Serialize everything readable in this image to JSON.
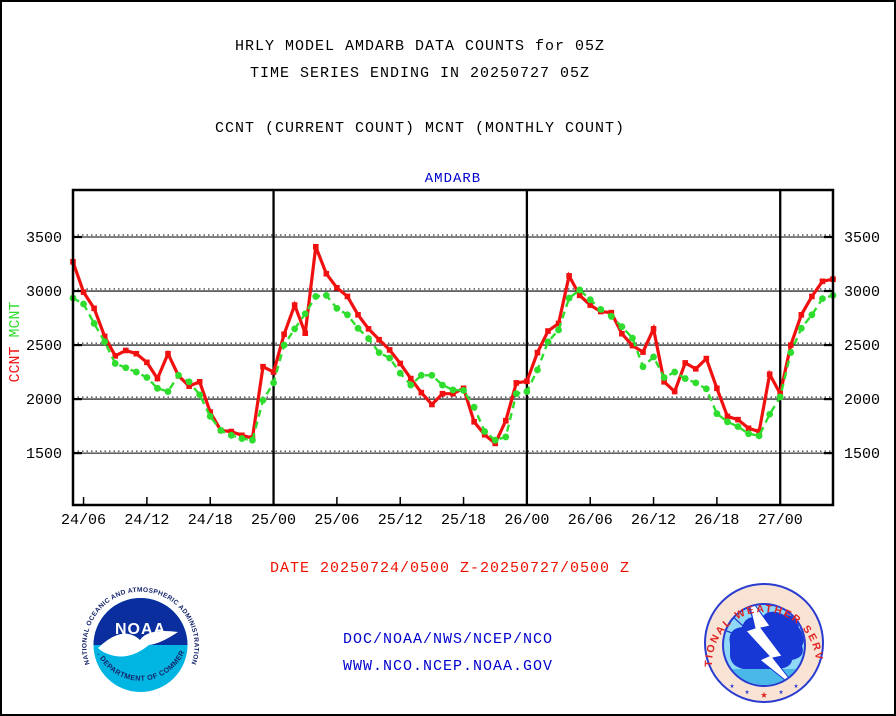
{
  "page": {
    "title_line1": "HRLY MODEL AMDARB DATA COUNTS for 05Z",
    "title_line2": "TIME SERIES ENDING IN 20250727 05Z",
    "subtitle": "CCNT (CURRENT COUNT) MCNT (MONTHLY COUNT)",
    "date_range": "DATE 20250724/0500 Z-20250727/0500 Z",
    "org_line": "DOC/NOAA/NWS/NCEP/NCO",
    "url_line": "WWW.NCO.NCEP.NOAA.GOV"
  },
  "axis_label": {
    "ccnt": "CCNT",
    "mcnt": "MCNT"
  },
  "colors": {
    "ccnt": "#f01010",
    "mcnt": "#2fdd2f",
    "chart_title": "#0000cc",
    "links": "#0000cc",
    "date": "#ee1100"
  },
  "logos": {
    "noaa": {
      "name": "NOAA",
      "top_text": "NATIONAL OCEANIC AND ATMOSPHERIC ADMINISTRATION",
      "bottom_text": "U.S. DEPARTMENT OF COMMERCE"
    },
    "nws": {
      "ring_text": "NATIONAL WEATHER SERVICE"
    }
  },
  "chart_data": {
    "type": "line",
    "title": "AMDARB",
    "xlabel": "",
    "ylabel": "CCNT MCNT",
    "grid": "horizontal-dotted",
    "legend_position": "none",
    "ylim": [
      1020,
      3935
    ],
    "yticks": [
      3500,
      3000,
      2500,
      2000,
      1500
    ],
    "xtick_labels": [
      "24/06",
      "24/12",
      "24/18",
      "25/00",
      "25/06",
      "25/12",
      "25/18",
      "26/00",
      "26/06",
      "26/12",
      "26/18",
      "27/00"
    ],
    "xtick_hours": [
      1,
      7,
      13,
      19,
      25,
      31,
      37,
      43,
      49,
      55,
      61,
      67
    ],
    "day_line_hours": [
      19,
      43,
      67
    ],
    "x_hours": [
      "24/05",
      "24/06",
      "24/07",
      "24/08",
      "24/09",
      "24/10",
      "24/11",
      "24/12",
      "24/13",
      "24/14",
      "24/15",
      "24/16",
      "24/17",
      "24/18",
      "24/19",
      "24/20",
      "24/21",
      "24/22",
      "24/23",
      "25/00",
      "25/01",
      "25/02",
      "25/03",
      "25/04",
      "25/05",
      "25/06",
      "25/07",
      "25/08",
      "25/09",
      "25/10",
      "25/11",
      "25/12",
      "25/13",
      "25/14",
      "25/15",
      "25/16",
      "25/17",
      "25/18",
      "25/19",
      "25/20",
      "25/21",
      "25/22",
      "25/23",
      "26/00",
      "26/01",
      "26/02",
      "26/03",
      "26/04",
      "26/05",
      "26/06",
      "26/07",
      "26/08",
      "26/09",
      "26/10",
      "26/11",
      "26/12",
      "26/13",
      "26/14",
      "26/15",
      "26/16",
      "26/17",
      "26/18",
      "26/19",
      "26/20",
      "26/21",
      "26/22",
      "26/23",
      "27/00",
      "27/01",
      "27/02",
      "27/03",
      "27/04",
      "27/05"
    ],
    "series": [
      {
        "name": "CCNT",
        "label": "CCNT (CURRENT COUNT)",
        "color": "#f01010",
        "marker": "square",
        "dashed": false,
        "values": [
          3270,
          2990,
          2840,
          2580,
          2400,
          2450,
          2420,
          2340,
          2190,
          2420,
          2215,
          2120,
          2160,
          1880,
          1710,
          1700,
          1665,
          1640,
          2300,
          2250,
          2600,
          2870,
          2610,
          3410,
          3160,
          3030,
          2950,
          2780,
          2650,
          2550,
          2455,
          2330,
          2190,
          2060,
          1950,
          2050,
          2050,
          2100,
          1790,
          1670,
          1590,
          1800,
          2150,
          2165,
          2430,
          2630,
          2700,
          3140,
          2960,
          2870,
          2810,
          2800,
          2605,
          2495,
          2435,
          2650,
          2160,
          2070,
          2335,
          2280,
          2375,
          2100,
          1840,
          1810,
          1730,
          1700,
          2230,
          2050,
          2500,
          2780,
          2950,
          3090,
          3110
        ]
      },
      {
        "name": "MCNT",
        "label": "MCNT (MONTHLY COUNT)",
        "color": "#2fdd2f",
        "marker": "circle",
        "dashed": true,
        "values": [
          2935,
          2880,
          2700,
          2530,
          2330,
          2290,
          2250,
          2200,
          2100,
          2070,
          2220,
          2160,
          2040,
          1840,
          1710,
          1665,
          1635,
          1620,
          1990,
          2150,
          2500,
          2650,
          2790,
          2950,
          2960,
          2840,
          2780,
          2655,
          2560,
          2430,
          2380,
          2240,
          2130,
          2220,
          2220,
          2130,
          2085,
          2080,
          1925,
          1700,
          1620,
          1650,
          2050,
          2070,
          2270,
          2530,
          2640,
          2935,
          3010,
          2920,
          2830,
          2765,
          2670,
          2565,
          2300,
          2390,
          2200,
          2250,
          2190,
          2150,
          2095,
          1865,
          1790,
          1745,
          1680,
          1660,
          1860,
          2020,
          2430,
          2655,
          2780,
          2930,
          2960
        ]
      }
    ]
  }
}
